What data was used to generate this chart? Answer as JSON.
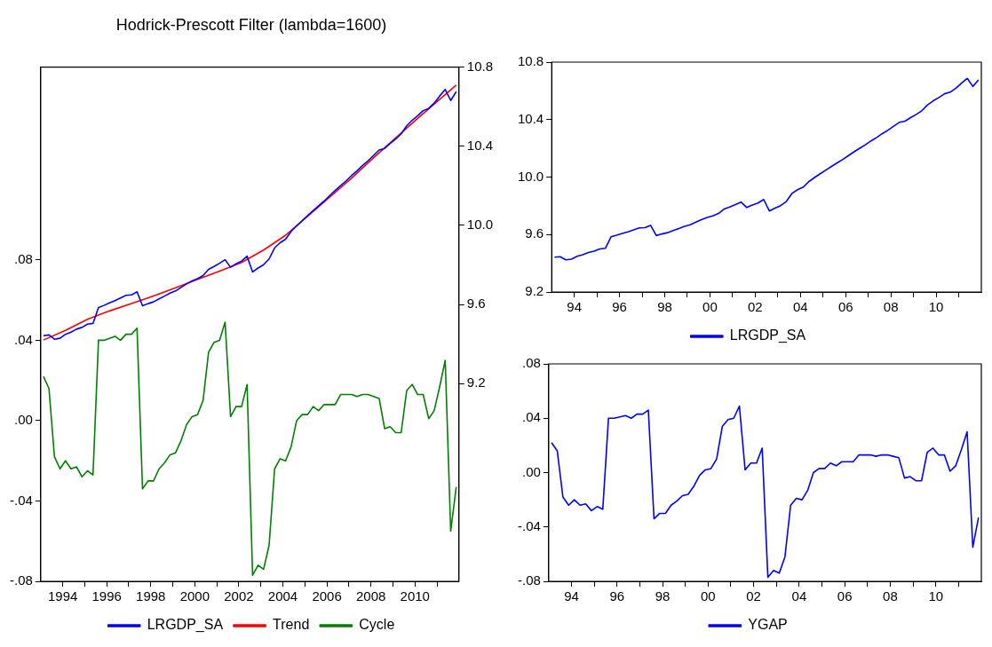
{
  "chart_data": [
    {
      "type": "line",
      "title": "Hodrick-Prescott Filter (lambda=1600)",
      "x": [
        1993.125,
        1993.375,
        1993.625,
        1993.875,
        1994.125,
        1994.375,
        1994.625,
        1994.875,
        1995.125,
        1995.375,
        1995.625,
        1995.875,
        1996.125,
        1996.375,
        1996.625,
        1996.875,
        1997.125,
        1997.375,
        1997.625,
        1997.875,
        1998.125,
        1998.375,
        1998.625,
        1998.875,
        1999.125,
        1999.375,
        1999.625,
        1999.875,
        2000.125,
        2000.375,
        2000.625,
        2000.875,
        2001.125,
        2001.375,
        2001.625,
        2001.875,
        2002.125,
        2002.375,
        2002.625,
        2002.875,
        2003.125,
        2003.375,
        2003.625,
        2003.875,
        2004.125,
        2004.375,
        2004.625,
        2004.875,
        2005.125,
        2005.375,
        2005.625,
        2005.875,
        2006.125,
        2006.375,
        2006.625,
        2006.875,
        2007.125,
        2007.375,
        2007.625,
        2007.875,
        2008.125,
        2008.375,
        2008.625,
        2008.875,
        2009.125,
        2009.375,
        2009.625,
        2009.875,
        2010.125,
        2010.375,
        2010.625,
        2010.875,
        2011.125,
        2011.375,
        2011.625,
        2011.875
      ],
      "series": [
        {
          "name": "LRGDP_SA",
          "color": "#0000ff",
          "axis": "y2",
          "values": [
            9.442,
            9.446,
            9.424,
            9.429,
            9.449,
            9.46,
            9.475,
            9.484,
            9.5,
            9.504,
            9.584,
            9.595,
            9.608,
            9.619,
            9.633,
            9.646,
            9.648,
            9.664,
            9.593,
            9.604,
            9.613,
            9.628,
            9.642,
            9.657,
            9.668,
            9.686,
            9.704,
            9.719,
            9.73,
            9.746,
            9.777,
            9.792,
            9.808,
            9.826,
            9.788,
            9.806,
            9.819,
            9.844,
            9.764,
            9.784,
            9.801,
            9.83,
            9.886,
            9.912,
            9.93,
            9.969,
            9.997,
            10.023,
            10.049,
            10.074,
            10.099,
            10.123,
            10.15,
            10.176,
            10.201,
            10.225,
            10.252,
            10.276,
            10.303,
            10.327,
            10.354,
            10.381,
            10.389,
            10.414,
            10.436,
            10.463,
            10.503,
            10.531,
            10.554,
            10.58,
            10.591,
            10.618,
            10.654,
            10.687,
            10.631,
            10.676
          ]
        },
        {
          "name": "Trend",
          "color": "#ff0000",
          "axis": "y2",
          "x": [
            1993.125,
            1994.125,
            1995.125,
            1996.125,
            1997.125,
            1998.125,
            1999.125,
            2000.125,
            2001.125,
            2002.125,
            2003.125,
            2004.125,
            2005.125,
            2006.125,
            2007.125,
            2008.125,
            2009.125,
            2010.125,
            2011.125,
            2011.875
          ],
          "values": [
            9.42,
            9.469,
            9.525,
            9.567,
            9.605,
            9.643,
            9.684,
            9.727,
            9.768,
            9.812,
            9.875,
            9.95,
            10.046,
            10.142,
            10.239,
            10.342,
            10.442,
            10.541,
            10.637,
            10.709
          ]
        },
        {
          "name": "Cycle",
          "color": "#008000",
          "values": [
            0.022,
            0.016,
            -0.018,
            -0.024,
            -0.02,
            -0.024,
            -0.023,
            -0.028,
            -0.025,
            -0.027,
            0.04,
            0.04,
            0.041,
            0.042,
            0.04,
            0.043,
            0.043,
            0.046,
            -0.034,
            -0.03,
            -0.03,
            -0.024,
            -0.021,
            -0.017,
            -0.016,
            -0.01,
            -0.002,
            0.002,
            0.003,
            0.01,
            0.034,
            0.039,
            0.04,
            0.049,
            0.002,
            0.007,
            0.007,
            0.018,
            -0.077,
            -0.072,
            -0.074,
            -0.062,
            -0.024,
            -0.019,
            -0.02,
            -0.013,
            0,
            0.003,
            0.003,
            0.007,
            0.005,
            0.008,
            0.008,
            0.008,
            0.013,
            0.013,
            0.013,
            0.012,
            0.013,
            0.013,
            0.012,
            0.011,
            -0.004,
            -0.003,
            -0.006,
            -0.006,
            0.015,
            0.018,
            0.013,
            0.013,
            0.001,
            0.005,
            0.017,
            0.03,
            -0.055,
            -0.033
          ]
        }
      ],
      "xlim": [
        1993,
        2012
      ],
      "xticks": [
        {
          "value": 1994,
          "label": "1994"
        },
        {
          "value": 1995,
          "label": null
        },
        {
          "value": 1996,
          "label": "1996"
        },
        {
          "value": 1997,
          "label": null
        },
        {
          "value": 1998,
          "label": "1998"
        },
        {
          "value": 1999,
          "label": null
        },
        {
          "value": 2000,
          "label": "2000"
        },
        {
          "value": 2001,
          "label": null
        },
        {
          "value": 2002,
          "label": "2002"
        },
        {
          "value": 2003,
          "label": null
        },
        {
          "value": 2004,
          "label": "2004"
        },
        {
          "value": 2005,
          "label": null
        },
        {
          "value": 2006,
          "label": "2006"
        },
        {
          "value": 2007,
          "label": null
        },
        {
          "value": 2008,
          "label": "2008"
        },
        {
          "value": 2009,
          "label": null
        },
        {
          "value": 2010,
          "label": "2010"
        },
        {
          "value": 2011,
          "label": null
        }
      ],
      "ylim": [
        -0.08,
        0.176
      ],
      "yticks": [
        {
          "value": -0.08,
          "label": "-.08"
        },
        {
          "value": -0.04,
          "label": "-.04"
        },
        {
          "value": 0,
          "label": ".00"
        },
        {
          "value": 0.04,
          "label": ".04"
        },
        {
          "value": 0.08,
          "label": ".08"
        }
      ],
      "y2lim": [
        8.2,
        10.8
      ],
      "y2ticks": [
        9.2,
        9.6,
        {
          "value": 10,
          "label": "10.0"
        },
        10.4,
        10.8
      ],
      "legend": "bottom",
      "marker": "none",
      "line_style": "solid",
      "grid": false
    },
    {
      "type": "line",
      "x": [
        1993.125,
        1993.375,
        1993.625,
        1993.875,
        1994.125,
        1994.375,
        1994.625,
        1994.875,
        1995.125,
        1995.375,
        1995.625,
        1995.875,
        1996.125,
        1996.375,
        1996.625,
        1996.875,
        1997.125,
        1997.375,
        1997.625,
        1997.875,
        1998.125,
        1998.375,
        1998.625,
        1998.875,
        1999.125,
        1999.375,
        1999.625,
        1999.875,
        2000.125,
        2000.375,
        2000.625,
        2000.875,
        2001.125,
        2001.375,
        2001.625,
        2001.875,
        2002.125,
        2002.375,
        2002.625,
        2002.875,
        2003.125,
        2003.375,
        2003.625,
        2003.875,
        2004.125,
        2004.375,
        2004.625,
        2004.875,
        2005.125,
        2005.375,
        2005.625,
        2005.875,
        2006.125,
        2006.375,
        2006.625,
        2006.875,
        2007.125,
        2007.375,
        2007.625,
        2007.875,
        2008.125,
        2008.375,
        2008.625,
        2008.875,
        2009.125,
        2009.375,
        2009.625,
        2009.875,
        2010.125,
        2010.375,
        2010.625,
        2010.875,
        2011.125,
        2011.375,
        2011.625,
        2011.875
      ],
      "series": [
        {
          "name": "LRGDP_SA",
          "color": "#0000ff",
          "values": [
            9.442,
            9.446,
            9.424,
            9.429,
            9.449,
            9.46,
            9.475,
            9.484,
            9.5,
            9.504,
            9.584,
            9.595,
            9.608,
            9.619,
            9.633,
            9.646,
            9.648,
            9.664,
            9.593,
            9.604,
            9.613,
            9.628,
            9.642,
            9.657,
            9.668,
            9.686,
            9.704,
            9.719,
            9.73,
            9.746,
            9.777,
            9.792,
            9.808,
            9.826,
            9.788,
            9.806,
            9.819,
            9.844,
            9.764,
            9.784,
            9.801,
            9.83,
            9.886,
            9.912,
            9.93,
            9.969,
            9.997,
            10.023,
            10.049,
            10.074,
            10.099,
            10.123,
            10.15,
            10.176,
            10.201,
            10.225,
            10.252,
            10.276,
            10.303,
            10.327,
            10.354,
            10.381,
            10.389,
            10.414,
            10.436,
            10.463,
            10.503,
            10.531,
            10.554,
            10.58,
            10.591,
            10.618,
            10.654,
            10.687,
            10.631,
            10.676
          ]
        }
      ],
      "xlim": [
        1993,
        2012
      ],
      "xticks": [
        {
          "value": 1994,
          "label": "94"
        },
        {
          "value": 1995,
          "label": null
        },
        {
          "value": 1996,
          "label": "96"
        },
        {
          "value": 1997,
          "label": null
        },
        {
          "value": 1998,
          "label": "98"
        },
        {
          "value": 1999,
          "label": null
        },
        {
          "value": 2000,
          "label": "00"
        },
        {
          "value": 2001,
          "label": null
        },
        {
          "value": 2002,
          "label": "02"
        },
        {
          "value": 2003,
          "label": null
        },
        {
          "value": 2004,
          "label": "04"
        },
        {
          "value": 2005,
          "label": null
        },
        {
          "value": 2006,
          "label": "06"
        },
        {
          "value": 2007,
          "label": null
        },
        {
          "value": 2008,
          "label": "08"
        },
        {
          "value": 2009,
          "label": null
        },
        {
          "value": 2010,
          "label": "10"
        },
        {
          "value": 2011,
          "label": null
        }
      ],
      "ylim": [
        9.2,
        10.8
      ],
      "yticks": [
        9.2,
        9.6,
        {
          "value": 10,
          "label": "10.0"
        },
        10.4,
        10.8
      ],
      "legend": "bottom",
      "marker": "none",
      "line_style": "solid",
      "grid": false
    },
    {
      "type": "line",
      "x": [
        1993.125,
        1993.375,
        1993.625,
        1993.875,
        1994.125,
        1994.375,
        1994.625,
        1994.875,
        1995.125,
        1995.375,
        1995.625,
        1995.875,
        1996.125,
        1996.375,
        1996.625,
        1996.875,
        1997.125,
        1997.375,
        1997.625,
        1997.875,
        1998.125,
        1998.375,
        1998.625,
        1998.875,
        1999.125,
        1999.375,
        1999.625,
        1999.875,
        2000.125,
        2000.375,
        2000.625,
        2000.875,
        2001.125,
        2001.375,
        2001.625,
        2001.875,
        2002.125,
        2002.375,
        2002.625,
        2002.875,
        2003.125,
        2003.375,
        2003.625,
        2003.875,
        2004.125,
        2004.375,
        2004.625,
        2004.875,
        2005.125,
        2005.375,
        2005.625,
        2005.875,
        2006.125,
        2006.375,
        2006.625,
        2006.875,
        2007.125,
        2007.375,
        2007.625,
        2007.875,
        2008.125,
        2008.375,
        2008.625,
        2008.875,
        2009.125,
        2009.375,
        2009.625,
        2009.875,
        2010.125,
        2010.375,
        2010.625,
        2010.875,
        2011.125,
        2011.375,
        2011.625,
        2011.875
      ],
      "series": [
        {
          "name": "YGAP",
          "color": "#0000ff",
          "values": [
            0.022,
            0.016,
            -0.018,
            -0.024,
            -0.02,
            -0.024,
            -0.023,
            -0.028,
            -0.025,
            -0.027,
            0.04,
            0.04,
            0.041,
            0.042,
            0.04,
            0.043,
            0.043,
            0.046,
            -0.034,
            -0.03,
            -0.03,
            -0.024,
            -0.021,
            -0.017,
            -0.016,
            -0.01,
            -0.002,
            0.002,
            0.003,
            0.01,
            0.034,
            0.039,
            0.04,
            0.049,
            0.002,
            0.007,
            0.007,
            0.018,
            -0.077,
            -0.072,
            -0.074,
            -0.062,
            -0.024,
            -0.019,
            -0.02,
            -0.013,
            0,
            0.003,
            0.003,
            0.007,
            0.005,
            0.008,
            0.008,
            0.008,
            0.013,
            0.013,
            0.013,
            0.012,
            0.013,
            0.013,
            0.012,
            0.011,
            -0.004,
            -0.003,
            -0.006,
            -0.006,
            0.015,
            0.018,
            0.013,
            0.013,
            0.001,
            0.005,
            0.017,
            0.03,
            -0.055,
            -0.033
          ]
        }
      ],
      "xlim": [
        1993,
        2012
      ],
      "xticks": [
        {
          "value": 1994,
          "label": "94"
        },
        {
          "value": 1995,
          "label": null
        },
        {
          "value": 1996,
          "label": "96"
        },
        {
          "value": 1997,
          "label": null
        },
        {
          "value": 1998,
          "label": "98"
        },
        {
          "value": 1999,
          "label": null
        },
        {
          "value": 2000,
          "label": "00"
        },
        {
          "value": 2001,
          "label": null
        },
        {
          "value": 2002,
          "label": "02"
        },
        {
          "value": 2003,
          "label": null
        },
        {
          "value": 2004,
          "label": "04"
        },
        {
          "value": 2005,
          "label": null
        },
        {
          "value": 2006,
          "label": "06"
        },
        {
          "value": 2007,
          "label": null
        },
        {
          "value": 2008,
          "label": "08"
        },
        {
          "value": 2009,
          "label": null
        },
        {
          "value": 2010,
          "label": "10"
        },
        {
          "value": 2011,
          "label": null
        }
      ],
      "ylim": [
        -0.08,
        0.08
      ],
      "yticks": [
        {
          "value": -0.08,
          "label": "-.08"
        },
        {
          "value": -0.04,
          "label": "-.04"
        },
        {
          "value": 0,
          "label": ".00"
        },
        {
          "value": 0.04,
          "label": ".04"
        },
        {
          "value": 0.08,
          "label": ".08"
        }
      ],
      "legend": "bottom",
      "marker": "none",
      "line_style": "solid",
      "grid": false
    }
  ]
}
